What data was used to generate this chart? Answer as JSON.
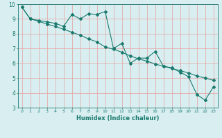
{
  "title": "",
  "xlabel": "Humidex (Indice chaleur)",
  "ylabel": "",
  "bg_color": "#d8eef0",
  "line_color": "#1a7a6e",
  "x_main": [
    0,
    1,
    2,
    3,
    4,
    5,
    6,
    7,
    8,
    9,
    10,
    11,
    12,
    13,
    14,
    15,
    16,
    17,
    18,
    19,
    20,
    21,
    22,
    23
  ],
  "y_main": [
    9.8,
    9.0,
    8.9,
    8.8,
    8.7,
    8.5,
    9.3,
    9.0,
    9.35,
    9.3,
    9.5,
    7.0,
    7.35,
    6.0,
    6.35,
    6.35,
    6.8,
    5.8,
    5.7,
    5.4,
    5.1,
    3.9,
    3.5,
    4.4
  ],
  "x_trend": [
    0,
    1,
    2,
    3,
    4,
    5,
    6,
    7,
    8,
    9,
    10,
    11,
    12,
    13,
    14,
    15,
    16,
    17,
    18,
    19,
    20,
    21,
    22,
    23
  ],
  "y_trend": [
    9.8,
    9.0,
    8.85,
    8.65,
    8.5,
    8.3,
    8.1,
    7.9,
    7.65,
    7.45,
    7.1,
    6.95,
    6.75,
    6.5,
    6.3,
    6.15,
    5.95,
    5.8,
    5.65,
    5.5,
    5.35,
    5.15,
    5.0,
    4.85
  ],
  "xlim": [
    -0.5,
    23.5
  ],
  "ylim": [
    3,
    10
  ],
  "xticks": [
    0,
    1,
    2,
    3,
    4,
    5,
    6,
    7,
    8,
    9,
    10,
    11,
    12,
    13,
    14,
    15,
    16,
    17,
    18,
    19,
    20,
    21,
    22,
    23
  ],
  "yticks": [
    3,
    4,
    5,
    6,
    7,
    8,
    9,
    10
  ],
  "grid_color": "#e8a0a0",
  "marker": "D",
  "markersize": 2.0,
  "linewidth": 0.8
}
